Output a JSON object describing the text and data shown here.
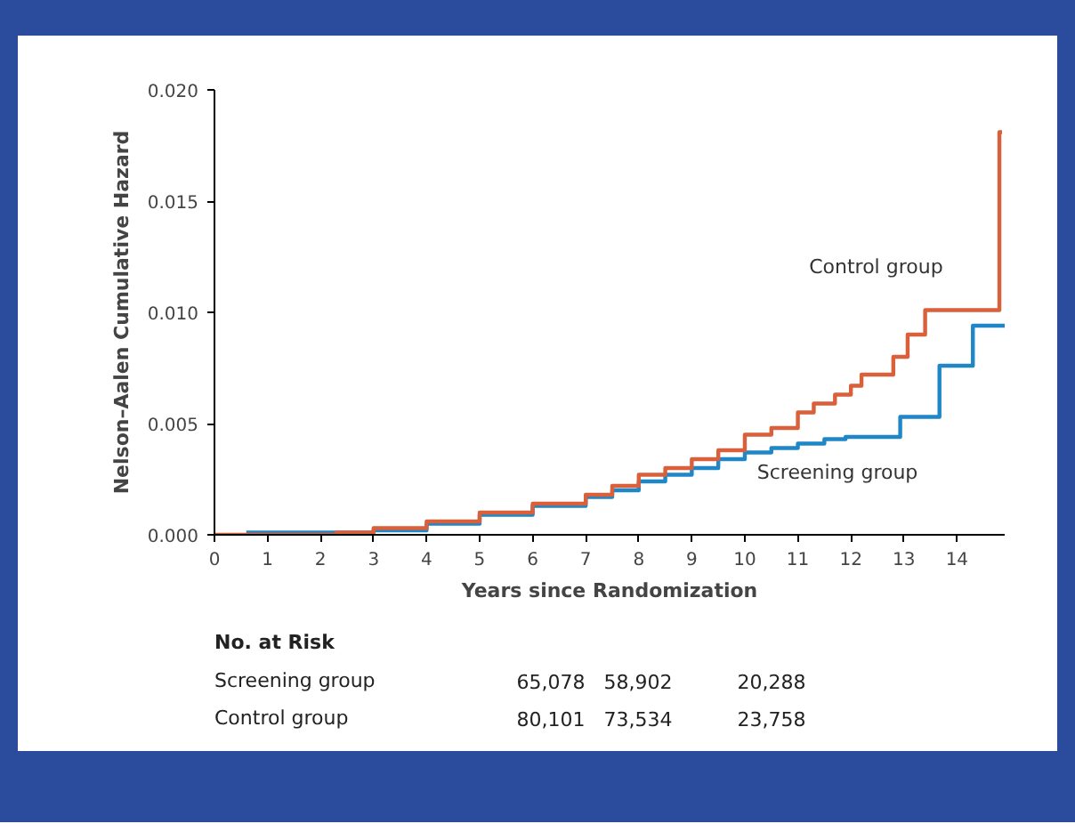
{
  "chart_data": {
    "type": "step",
    "xlabel": "Years since Randomization",
    "ylabel": "Nelson–Aalen Cumulative Hazard",
    "xlim": [
      0,
      14.9
    ],
    "ylim": [
      0,
      0.02
    ],
    "xticks": [
      0,
      1,
      2,
      3,
      4,
      5,
      6,
      7,
      8,
      9,
      10,
      11,
      12,
      13,
      14
    ],
    "yticks": [
      {
        "value": 0,
        "label": "0.000"
      },
      {
        "value": 0.005,
        "label": "0.005"
      },
      {
        "value": 0.01,
        "label": "0.010"
      },
      {
        "value": 0.015,
        "label": "0.015"
      },
      {
        "value": 0.02,
        "label": "0.020"
      }
    ],
    "grid": false,
    "marker": "none",
    "line_style": "solid",
    "series": [
      {
        "name": "Screening group",
        "color": "#1f87c8",
        "x": [
          0.6,
          2,
          3,
          4,
          5,
          6,
          7,
          7.5,
          8,
          8.5,
          9,
          9.5,
          10,
          10.5,
          11,
          11.5,
          11.9,
          12.93,
          13.67,
          14.3,
          14.9
        ],
        "values": [
          0.0001,
          0.0001,
          0.0002,
          0.0005,
          0.0009,
          0.0013,
          0.0017,
          0.002,
          0.0024,
          0.0027,
          0.003,
          0.0034,
          0.0037,
          0.0039,
          0.0041,
          0.0043,
          0.0044,
          0.0053,
          0.0076,
          0.0094,
          0.0094
        ]
      },
      {
        "name": "Control group",
        "color": "#d9603b",
        "x": [
          0,
          2.3,
          3,
          4,
          5,
          6,
          7,
          7.5,
          8,
          8.5,
          9,
          9.5,
          10,
          10.5,
          11,
          11.3,
          11.7,
          12,
          12.2,
          12.8,
          13.07,
          13.4,
          14.8,
          14.85
        ],
        "values": [
          0,
          0.0001,
          0.0003,
          0.0006,
          0.001,
          0.0014,
          0.0018,
          0.0022,
          0.0027,
          0.003,
          0.0034,
          0.0038,
          0.0045,
          0.0048,
          0.0055,
          0.0059,
          0.0063,
          0.0067,
          0.0072,
          0.008,
          0.009,
          0.0101,
          0.0181,
          0.0181
        ]
      }
    ],
    "annotations": [
      "No. at Risk",
      "Screening group",
      "65,078",
      "58,902",
      "20,288",
      "Control group",
      "80,101",
      "73,534",
      "23,758"
    ]
  }
}
